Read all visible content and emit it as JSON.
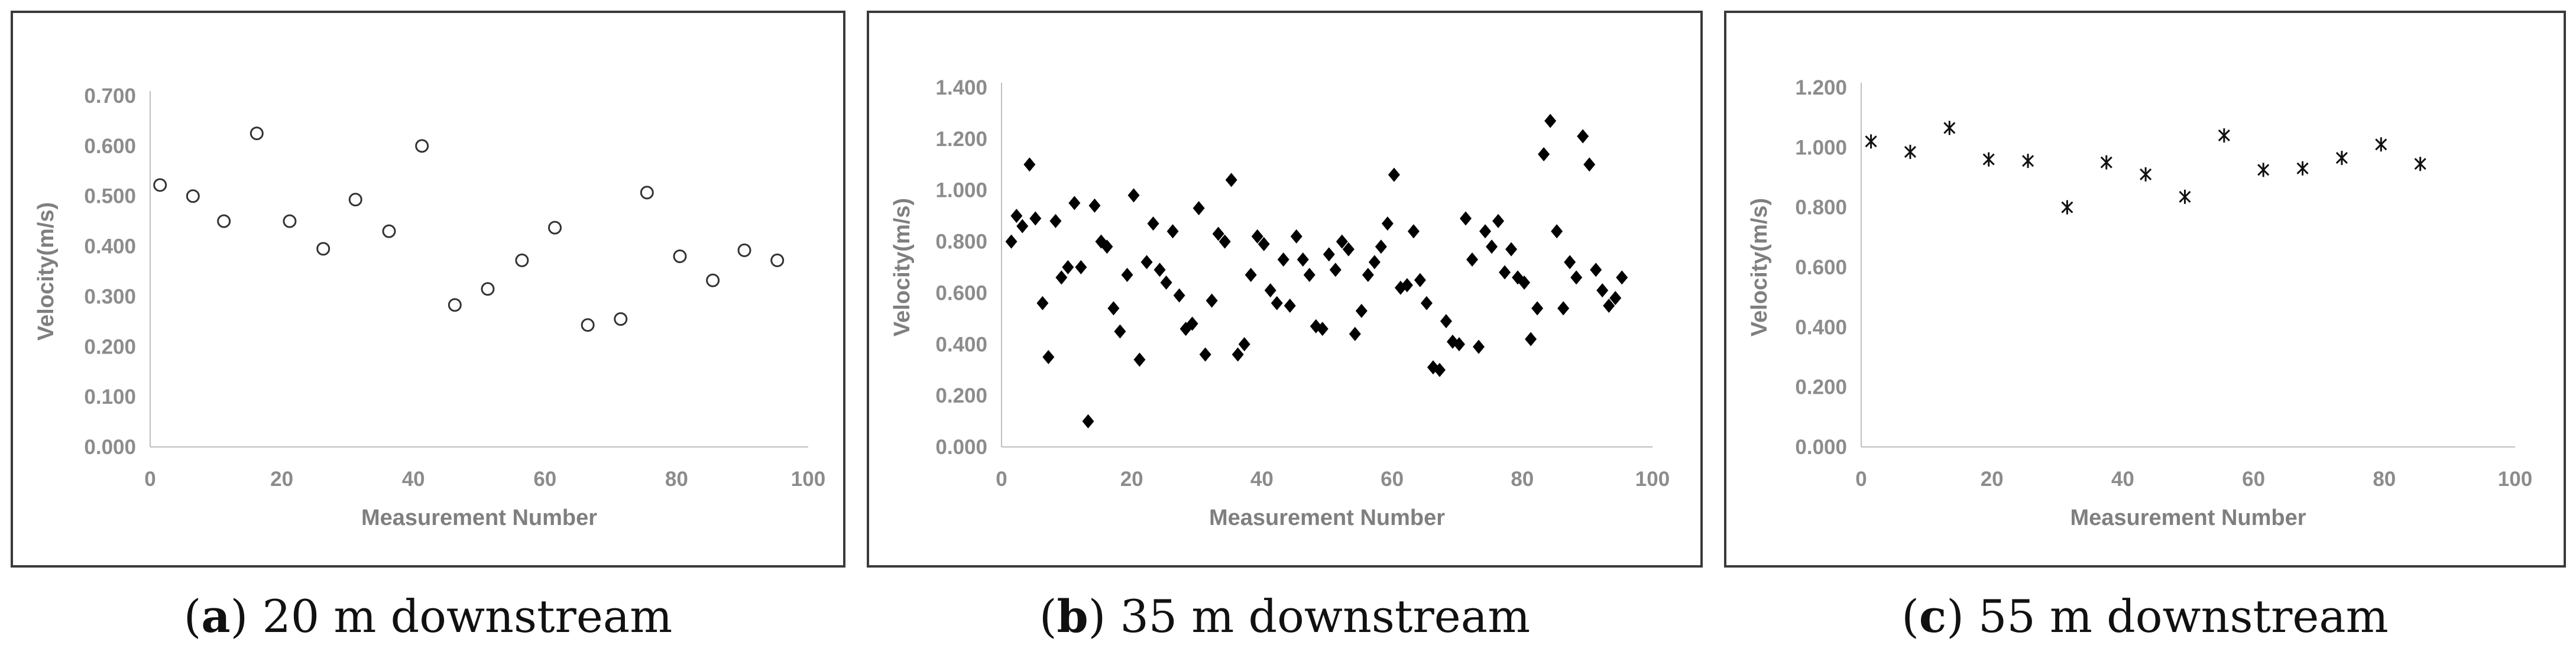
{
  "chart_data": [
    {
      "type": "scatter",
      "panel_letter": "a",
      "caption": "20 m downstream",
      "xlabel": "Measurement Number",
      "ylabel": "Velocity(m/s)",
      "xlim": [
        0,
        100
      ],
      "ylim": [
        0,
        0.7
      ],
      "xticks": [
        "0",
        "20",
        "40",
        "60",
        "80",
        "100"
      ],
      "yticks": [
        "0.000",
        "0.100",
        "0.200",
        "0.300",
        "0.400",
        "0.500",
        "0.600",
        "0.700"
      ],
      "marker": "open-circle",
      "points": [
        [
          1.5,
          0.522
        ],
        [
          6.5,
          0.5
        ],
        [
          11.2,
          0.45
        ],
        [
          16.2,
          0.625
        ],
        [
          21.2,
          0.45
        ],
        [
          26.3,
          0.395
        ],
        [
          31.2,
          0.493
        ],
        [
          36.3,
          0.43
        ],
        [
          41.3,
          0.6
        ],
        [
          46.3,
          0.283
        ],
        [
          51.3,
          0.315
        ],
        [
          56.5,
          0.372
        ],
        [
          61.5,
          0.437
        ],
        [
          66.5,
          0.243
        ],
        [
          71.5,
          0.255
        ],
        [
          75.5,
          0.507
        ],
        [
          80.5,
          0.38
        ],
        [
          85.5,
          0.332
        ],
        [
          90.3,
          0.392
        ],
        [
          95.3,
          0.372
        ]
      ]
    },
    {
      "type": "scatter",
      "panel_letter": "b",
      "caption": "35 m downstream",
      "xlabel": "Measurement Number",
      "ylabel": "Velocity(m/s)",
      "xlim": [
        0,
        100
      ],
      "ylim": [
        0,
        1.4
      ],
      "xticks": [
        "0",
        "20",
        "40",
        "60",
        "80",
        "100"
      ],
      "yticks": [
        "0.000",
        "0.200",
        "0.400",
        "0.600",
        "0.800",
        "1.000",
        "1.200",
        "1.400"
      ],
      "marker": "filled-diamond",
      "points": [
        [
          1.5,
          0.8
        ],
        [
          2.3,
          0.9
        ],
        [
          3.2,
          0.86
        ],
        [
          4.3,
          1.1
        ],
        [
          5.2,
          0.89
        ],
        [
          6.3,
          0.56
        ],
        [
          7.2,
          0.35
        ],
        [
          8.3,
          0.88
        ],
        [
          9.2,
          0.66
        ],
        [
          10.2,
          0.7
        ],
        [
          11.2,
          0.95
        ],
        [
          12.2,
          0.7
        ],
        [
          13.3,
          0.1
        ],
        [
          14.3,
          0.94
        ],
        [
          15.3,
          0.8
        ],
        [
          16.2,
          0.78
        ],
        [
          17.2,
          0.54
        ],
        [
          18.2,
          0.45
        ],
        [
          19.3,
          0.67
        ],
        [
          20.3,
          0.98
        ],
        [
          21.2,
          0.34
        ],
        [
          22.3,
          0.72
        ],
        [
          23.3,
          0.87
        ],
        [
          24.3,
          0.69
        ],
        [
          25.3,
          0.64
        ],
        [
          26.3,
          0.84
        ],
        [
          27.3,
          0.59
        ],
        [
          28.3,
          0.46
        ],
        [
          29.3,
          0.48
        ],
        [
          30.3,
          0.93
        ],
        [
          31.3,
          0.36
        ],
        [
          32.3,
          0.57
        ],
        [
          33.3,
          0.83
        ],
        [
          34.3,
          0.8
        ],
        [
          35.3,
          1.04
        ],
        [
          36.3,
          0.36
        ],
        [
          37.3,
          0.4
        ],
        [
          38.3,
          0.67
        ],
        [
          39.3,
          0.82
        ],
        [
          40.3,
          0.79
        ],
        [
          41.3,
          0.61
        ],
        [
          42.3,
          0.56
        ],
        [
          43.3,
          0.73
        ],
        [
          44.3,
          0.55
        ],
        [
          45.3,
          0.82
        ],
        [
          46.3,
          0.73
        ],
        [
          47.3,
          0.67
        ],
        [
          48.3,
          0.47
        ],
        [
          49.3,
          0.46
        ],
        [
          50.3,
          0.75
        ],
        [
          51.3,
          0.69
        ],
        [
          52.3,
          0.8
        ],
        [
          53.3,
          0.77
        ],
        [
          54.3,
          0.44
        ],
        [
          55.3,
          0.53
        ],
        [
          56.3,
          0.67
        ],
        [
          57.3,
          0.72
        ],
        [
          58.3,
          0.78
        ],
        [
          59.3,
          0.87
        ],
        [
          60.3,
          1.06
        ],
        [
          61.3,
          0.62
        ],
        [
          62.3,
          0.63
        ],
        [
          63.3,
          0.84
        ],
        [
          64.3,
          0.65
        ],
        [
          65.3,
          0.56
        ],
        [
          66.3,
          0.31
        ],
        [
          67.3,
          0.3
        ],
        [
          68.3,
          0.49
        ],
        [
          69.3,
          0.41
        ],
        [
          70.3,
          0.4
        ],
        [
          71.3,
          0.89
        ],
        [
          72.3,
          0.73
        ],
        [
          73.3,
          0.39
        ],
        [
          74.3,
          0.84
        ],
        [
          75.3,
          0.78
        ],
        [
          76.3,
          0.88
        ],
        [
          77.3,
          0.68
        ],
        [
          78.3,
          0.77
        ],
        [
          79.3,
          0.66
        ],
        [
          80.3,
          0.64
        ],
        [
          81.3,
          0.42
        ],
        [
          82.3,
          0.54
        ],
        [
          83.3,
          1.14
        ],
        [
          84.3,
          1.27
        ],
        [
          85.3,
          0.84
        ],
        [
          86.3,
          0.54
        ],
        [
          87.3,
          0.72
        ],
        [
          88.3,
          0.66
        ],
        [
          89.3,
          1.21
        ],
        [
          90.3,
          1.1
        ],
        [
          91.3,
          0.69
        ],
        [
          92.3,
          0.61
        ],
        [
          93.3,
          0.55
        ],
        [
          94.3,
          0.58
        ],
        [
          95.3,
          0.66
        ]
      ]
    },
    {
      "type": "scatter",
      "panel_letter": "c",
      "caption": "55 m downstream",
      "xlabel": "Measurement Number",
      "ylabel": "Velocity(m/s)",
      "xlim": [
        0,
        100
      ],
      "ylim": [
        0,
        1.2
      ],
      "xticks": [
        "0",
        "20",
        "40",
        "60",
        "80",
        "100"
      ],
      "yticks": [
        "0.000",
        "0.200",
        "0.400",
        "0.600",
        "0.800",
        "1.000",
        "1.200"
      ],
      "marker": "asterisk",
      "points": [
        [
          1.5,
          1.02
        ],
        [
          7.5,
          0.985
        ],
        [
          13.5,
          1.065
        ],
        [
          19.5,
          0.96
        ],
        [
          25.5,
          0.955
        ],
        [
          31.5,
          0.8
        ],
        [
          37.5,
          0.95
        ],
        [
          43.5,
          0.91
        ],
        [
          49.5,
          0.835
        ],
        [
          55.5,
          1.04
        ],
        [
          61.5,
          0.925
        ],
        [
          67.5,
          0.93
        ],
        [
          73.5,
          0.965
        ],
        [
          79.5,
          1.01
        ],
        [
          85.5,
          0.945
        ]
      ]
    }
  ]
}
